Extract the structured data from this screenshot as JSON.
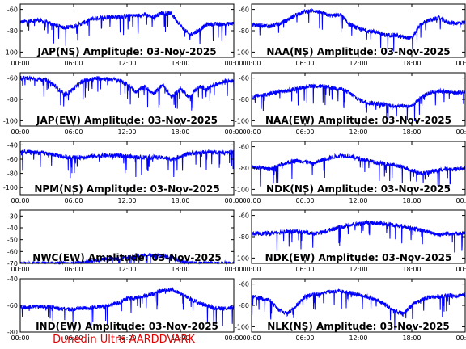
{
  "footer": "Dunedin Ultra AARDDVARK",
  "chart_data": [
    {
      "type": "line",
      "title": "JAP(NS) Amplitude: 03-Nov-2025",
      "ylim": [
        -105,
        -55
      ],
      "yticks": [
        -100,
        -80,
        -60
      ],
      "xticks": [
        "00:00",
        "06:00",
        "12:00",
        "18:00",
        "00:00"
      ],
      "x": [
        0,
        1,
        2,
        3,
        4,
        5,
        6,
        7,
        8,
        9,
        10,
        11,
        12,
        13,
        14,
        15,
        16,
        17,
        18,
        19,
        20,
        21,
        22,
        23,
        24
      ],
      "values": [
        -72,
        -71,
        -70,
        -72,
        -75,
        -77,
        -76,
        -73,
        -69,
        -68,
        -67,
        -67,
        -66,
        -66,
        -65,
        -67,
        -63,
        -64,
        -75,
        -84,
        -80,
        -74,
        -74,
        -74,
        -73
      ],
      "color": "#0000ff"
    },
    {
      "type": "line",
      "title": "NAA(NS) Amplitude: 03-Nov-2025",
      "ylim": [
        -105,
        -55
      ],
      "yticks": [
        -100,
        -80,
        -60
      ],
      "xticks": [
        "00:00",
        "06:00",
        "12:00",
        "18:00",
        "00:00"
      ],
      "x": [
        0,
        1,
        2,
        3,
        4,
        5,
        6,
        7,
        8,
        9,
        10,
        11,
        12,
        13,
        14,
        15,
        16,
        17,
        18,
        19,
        20,
        21,
        22,
        23,
        24
      ],
      "values": [
        -74,
        -75,
        -76,
        -74,
        -70,
        -65,
        -62,
        -61,
        -64,
        -66,
        -65,
        -74,
        -78,
        -80,
        -81,
        -84,
        -84,
        -86,
        -87,
        -74,
        -70,
        -68,
        -72,
        -73,
        -72
      ],
      "color": "#0000ff"
    },
    {
      "type": "line",
      "title": "JAP(EW) Amplitude: 03-Nov-2025",
      "ylim": [
        -105,
        -55
      ],
      "yticks": [
        -100,
        -80,
        -60
      ],
      "xticks": [
        "00:00",
        "06:00",
        "12:00",
        "18:00",
        "00:00"
      ],
      "x": [
        0,
        1,
        2,
        3,
        4,
        5,
        6,
        7,
        8,
        9,
        10,
        11,
        12,
        13,
        14,
        15,
        16,
        17,
        18,
        19,
        20,
        21,
        22,
        23,
        24
      ],
      "values": [
        -60,
        -60,
        -61,
        -62,
        -68,
        -76,
        -70,
        -63,
        -61,
        -60,
        -61,
        -62,
        -66,
        -73,
        -68,
        -75,
        -66,
        -78,
        -70,
        -78,
        -68,
        -70,
        -66,
        -63,
        -62
      ],
      "color": "#0000ff"
    },
    {
      "type": "line",
      "title": "NAA(EW) Amplitude: 03-Nov-2025",
      "ylim": [
        -105,
        -55
      ],
      "yticks": [
        -100,
        -80,
        -60
      ],
      "xticks": [
        "00:00",
        "06:00",
        "12:00",
        "18:00",
        "00:00"
      ],
      "x": [
        0,
        1,
        2,
        3,
        4,
        5,
        6,
        7,
        8,
        9,
        10,
        11,
        12,
        13,
        14,
        15,
        16,
        17,
        18,
        19,
        20,
        21,
        22,
        23,
        24
      ],
      "values": [
        -78,
        -76,
        -75,
        -73,
        -72,
        -70,
        -68,
        -67,
        -68,
        -69,
        -70,
        -74,
        -80,
        -83,
        -84,
        -85,
        -86,
        -86,
        -87,
        -78,
        -74,
        -72,
        -73,
        -74,
        -73
      ],
      "color": "#0000ff"
    },
    {
      "type": "line",
      "title": "NPM(NS) Amplitude: 03-Nov-2025",
      "ylim": [
        -110,
        -35
      ],
      "yticks": [
        -100,
        -80,
        -60,
        -40
      ],
      "xticks": [
        "00:00",
        "06:00",
        "12:00",
        "18:00",
        "00:00"
      ],
      "x": [
        0,
        1,
        2,
        3,
        4,
        5,
        6,
        7,
        8,
        9,
        10,
        11,
        12,
        13,
        14,
        15,
        16,
        17,
        18,
        19,
        20,
        21,
        22,
        23,
        24
      ],
      "values": [
        -50,
        -50,
        -51,
        -52,
        -54,
        -57,
        -58,
        -57,
        -56,
        -55,
        -55,
        -55,
        -56,
        -57,
        -57,
        -57,
        -58,
        -60,
        -56,
        -52,
        -51,
        -50,
        -50,
        -50,
        -50
      ],
      "color": "#0000ff"
    },
    {
      "type": "line",
      "title": "NDK(NS) Amplitude: 03-Nov-2025",
      "ylim": [
        -105,
        -55
      ],
      "yticks": [
        -100,
        -80,
        -60
      ],
      "xticks": [
        "00:00",
        "06:00",
        "12:00",
        "18:00",
        "00:00"
      ],
      "x": [
        0,
        1,
        2,
        3,
        4,
        5,
        6,
        7,
        8,
        9,
        10,
        11,
        12,
        13,
        14,
        15,
        16,
        17,
        18,
        19,
        20,
        21,
        22,
        23,
        24
      ],
      "values": [
        -79,
        -80,
        -81,
        -78,
        -75,
        -73,
        -74,
        -76,
        -72,
        -70,
        -68,
        -69,
        -71,
        -73,
        -75,
        -76,
        -77,
        -79,
        -82,
        -85,
        -84,
        -82,
        -81,
        -81,
        -80
      ],
      "color": "#0000ff"
    },
    {
      "type": "line",
      "title": "NWC(EW) Amplitude: 03-Nov-2025",
      "ylim": [
        -70,
        -25
      ],
      "yticks": [
        -70,
        -60,
        -50,
        -40,
        -30
      ],
      "xticks": [
        "00:00",
        "06:00",
        "12:00",
        "18:00",
        "00:00"
      ],
      "x": [
        0,
        1,
        2,
        3,
        4,
        5,
        6,
        7,
        8,
        9,
        10,
        11,
        12,
        13,
        14,
        15,
        16,
        17,
        18,
        19,
        20,
        21,
        22,
        23,
        24
      ],
      "values": [
        -70,
        -70,
        -70,
        -70,
        -70,
        -70,
        -70,
        -69,
        -68,
        -67,
        -66,
        -66,
        -65,
        -64,
        -63,
        -63,
        -64,
        -65,
        -68,
        -70,
        -70,
        -70,
        -70,
        -70,
        -70
      ],
      "color": "#0000ff"
    },
    {
      "type": "line",
      "title": "NDK(EW) Amplitude: 03-Nov-2025",
      "ylim": [
        -105,
        -55
      ],
      "yticks": [
        -100,
        -80,
        -60
      ],
      "xticks": [
        "00:00",
        "06:00",
        "12:00",
        "18:00",
        "00:00"
      ],
      "x": [
        0,
        1,
        2,
        3,
        4,
        5,
        6,
        7,
        8,
        9,
        10,
        11,
        12,
        13,
        14,
        15,
        16,
        17,
        18,
        19,
        20,
        21,
        22,
        23,
        24
      ],
      "values": [
        -77,
        -77,
        -77,
        -76,
        -75,
        -75,
        -76,
        -77,
        -76,
        -73,
        -71,
        -69,
        -68,
        -67,
        -67,
        -68,
        -69,
        -70,
        -72,
        -74,
        -76,
        -78,
        -77,
        -77,
        -77
      ],
      "color": "#0000ff"
    },
    {
      "type": "line",
      "title": "IND(EW) Amplitude: 03-Nov-2025",
      "ylim": [
        -80,
        -40
      ],
      "yticks": [
        -80,
        -60,
        -40
      ],
      "xticks": [
        "00:00",
        "06:00",
        "12:00",
        "18:00",
        "00:00"
      ],
      "x": [
        0,
        1,
        2,
        3,
        4,
        5,
        6,
        7,
        8,
        9,
        10,
        11,
        12,
        13,
        14,
        15,
        16,
        17,
        18,
        19,
        20,
        21,
        22,
        23,
        24
      ],
      "values": [
        -62,
        -61,
        -61,
        -61,
        -62,
        -63,
        -63,
        -62,
        -62,
        -61,
        -60,
        -58,
        -55,
        -54,
        -53,
        -51,
        -49,
        -48,
        -51,
        -55,
        -58,
        -60,
        -62,
        -62,
        -62
      ],
      "color": "#0000ff"
    },
    {
      "type": "line",
      "title": "NLK(NS) Amplitude: 03-Nov-2025",
      "ylim": [
        -105,
        -55
      ],
      "yticks": [
        -100,
        -80,
        -60
      ],
      "xticks": [
        "00:00",
        "06:00",
        "12:00",
        "18:00",
        "00:00"
      ],
      "x": [
        0,
        1,
        2,
        3,
        4,
        5,
        6,
        7,
        8,
        9,
        10,
        11,
        12,
        13,
        14,
        15,
        16,
        17,
        18,
        19,
        20,
        21,
        22,
        23,
        24
      ],
      "values": [
        -72,
        -73,
        -75,
        -84,
        -88,
        -80,
        -72,
        -70,
        -68,
        -67,
        -67,
        -68,
        -70,
        -72,
        -75,
        -79,
        -85,
        -88,
        -80,
        -75,
        -72,
        -72,
        -71,
        -71,
        -70
      ],
      "color": "#0000ff"
    }
  ]
}
